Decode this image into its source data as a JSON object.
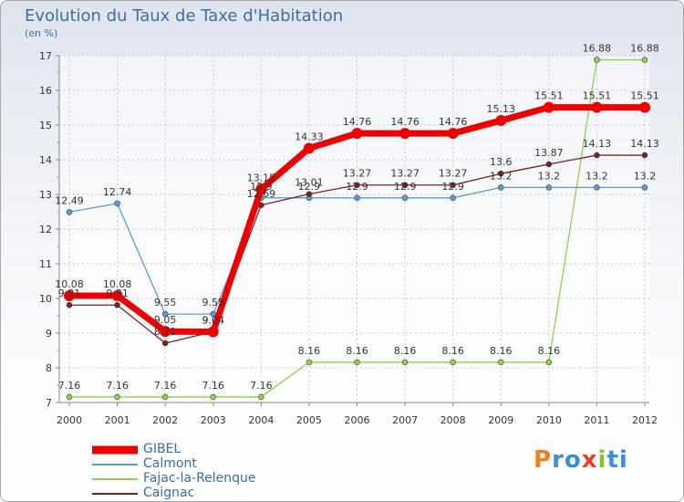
{
  "chart_data": {
    "type": "line",
    "title": "Evolution du Taux de Taxe d'Habitation",
    "subtitle": "(en %)",
    "x": [
      "2000",
      "2001",
      "2002",
      "2003",
      "2004",
      "2005",
      "2006",
      "2007",
      "2008",
      "2009",
      "2010",
      "2011",
      "2012"
    ],
    "ylim": [
      7,
      17
    ],
    "yticks": [
      7,
      8,
      9,
      10,
      11,
      12,
      13,
      14,
      15,
      16,
      17
    ],
    "grid": true,
    "legend_position": "bottom-left",
    "series": [
      {
        "name": "GIBEL",
        "color": "#ee0000",
        "values": [
          10.08,
          10.08,
          9.05,
          9.04,
          13.15,
          14.33,
          14.76,
          14.76,
          14.76,
          15.13,
          15.51,
          15.51,
          15.51
        ],
        "labels": [
          "10.08",
          "10.08",
          "9.05",
          "9.04",
          "13.15",
          "14.33",
          "14.76",
          "14.76",
          "14.76",
          "15.13",
          "15.51",
          "15.51",
          "15.51"
        ]
      },
      {
        "name": "Calmont",
        "color": "#5b9bd5",
        "values": [
          12.49,
          12.74,
          9.55,
          9.55,
          12.9,
          12.9,
          12.9,
          12.9,
          12.9,
          13.2,
          13.2,
          13.2,
          13.2
        ],
        "labels": [
          "12.49",
          "12.74",
          "9.55",
          "9.55",
          "12.9",
          "12.9",
          "12.9",
          "12.9",
          "12.9",
          "13.2",
          "13.2",
          "13.2",
          "13.2"
        ]
      },
      {
        "name": "Fajac-la-Relenque",
        "color": "#90d050",
        "values": [
          7.16,
          7.16,
          7.16,
          7.16,
          7.16,
          8.16,
          8.16,
          8.16,
          8.16,
          8.16,
          8.16,
          16.88,
          16.88
        ],
        "labels": [
          "7.16",
          "7.16",
          "7.16",
          "7.16",
          "7.16",
          "8.16",
          "8.16",
          "8.16",
          "8.16",
          "8.16",
          "8.16",
          "16.88",
          "16.88"
        ]
      },
      {
        "name": "Caignac",
        "color": "#7a2222",
        "values": [
          9.81,
          9.81,
          8.71,
          9.04,
          12.69,
          13.01,
          13.27,
          13.27,
          13.27,
          13.6,
          13.87,
          14.13,
          14.13
        ],
        "labels": [
          "9.81",
          "9.81",
          "8.71",
          "9.04",
          "12.69",
          "13.01",
          "13.27",
          "13.27",
          "13.27",
          "13.6",
          "13.87",
          "14.13",
          "14.13"
        ]
      }
    ]
  },
  "logo": {
    "letters": [
      "P",
      "r",
      "o",
      "x",
      "i",
      "ti"
    ]
  }
}
